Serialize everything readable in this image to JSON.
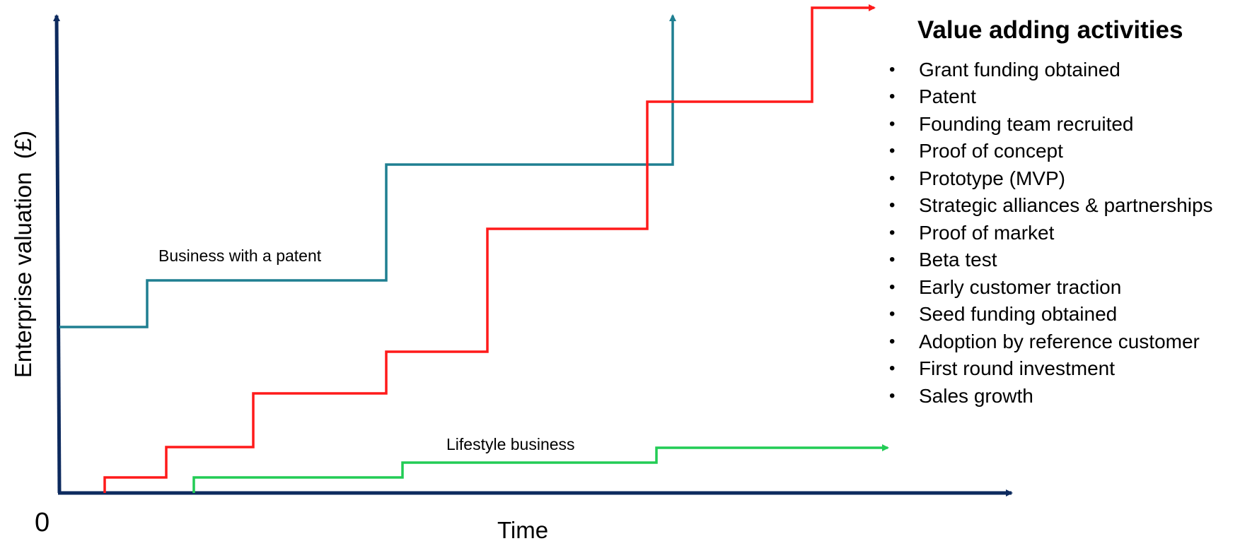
{
  "diagram": {
    "origin_label": "0",
    "x_axis_label": "Time",
    "y_axis_label": "Enterprise valuation  (£)",
    "colors": {
      "axis": "#0d2a5e",
      "patent": "#1f7f91",
      "red_path": "#ff1a1a",
      "lifestyle": "#22cc55"
    },
    "series": [
      {
        "key": "patent",
        "label": "Business with a patent",
        "color": "#1f7f91",
        "arrow": "up"
      },
      {
        "key": "red_path",
        "label": "",
        "color": "#ff1a1a",
        "arrow": "right"
      },
      {
        "key": "lifestyle",
        "label": "Lifestyle business",
        "color": "#22cc55",
        "arrow": "right"
      }
    ]
  },
  "activities": {
    "title": "Value adding activities",
    "items": [
      "Grant funding obtained",
      "Patent",
      "Founding team recruited",
      "Proof of concept",
      "Prototype (MVP)",
      "Strategic alliances & partnerships",
      "Proof of market",
      "Beta test",
      "Early customer traction",
      "Seed funding obtained",
      "Adoption by reference customer",
      "First round investment",
      "Sales growth"
    ]
  }
}
